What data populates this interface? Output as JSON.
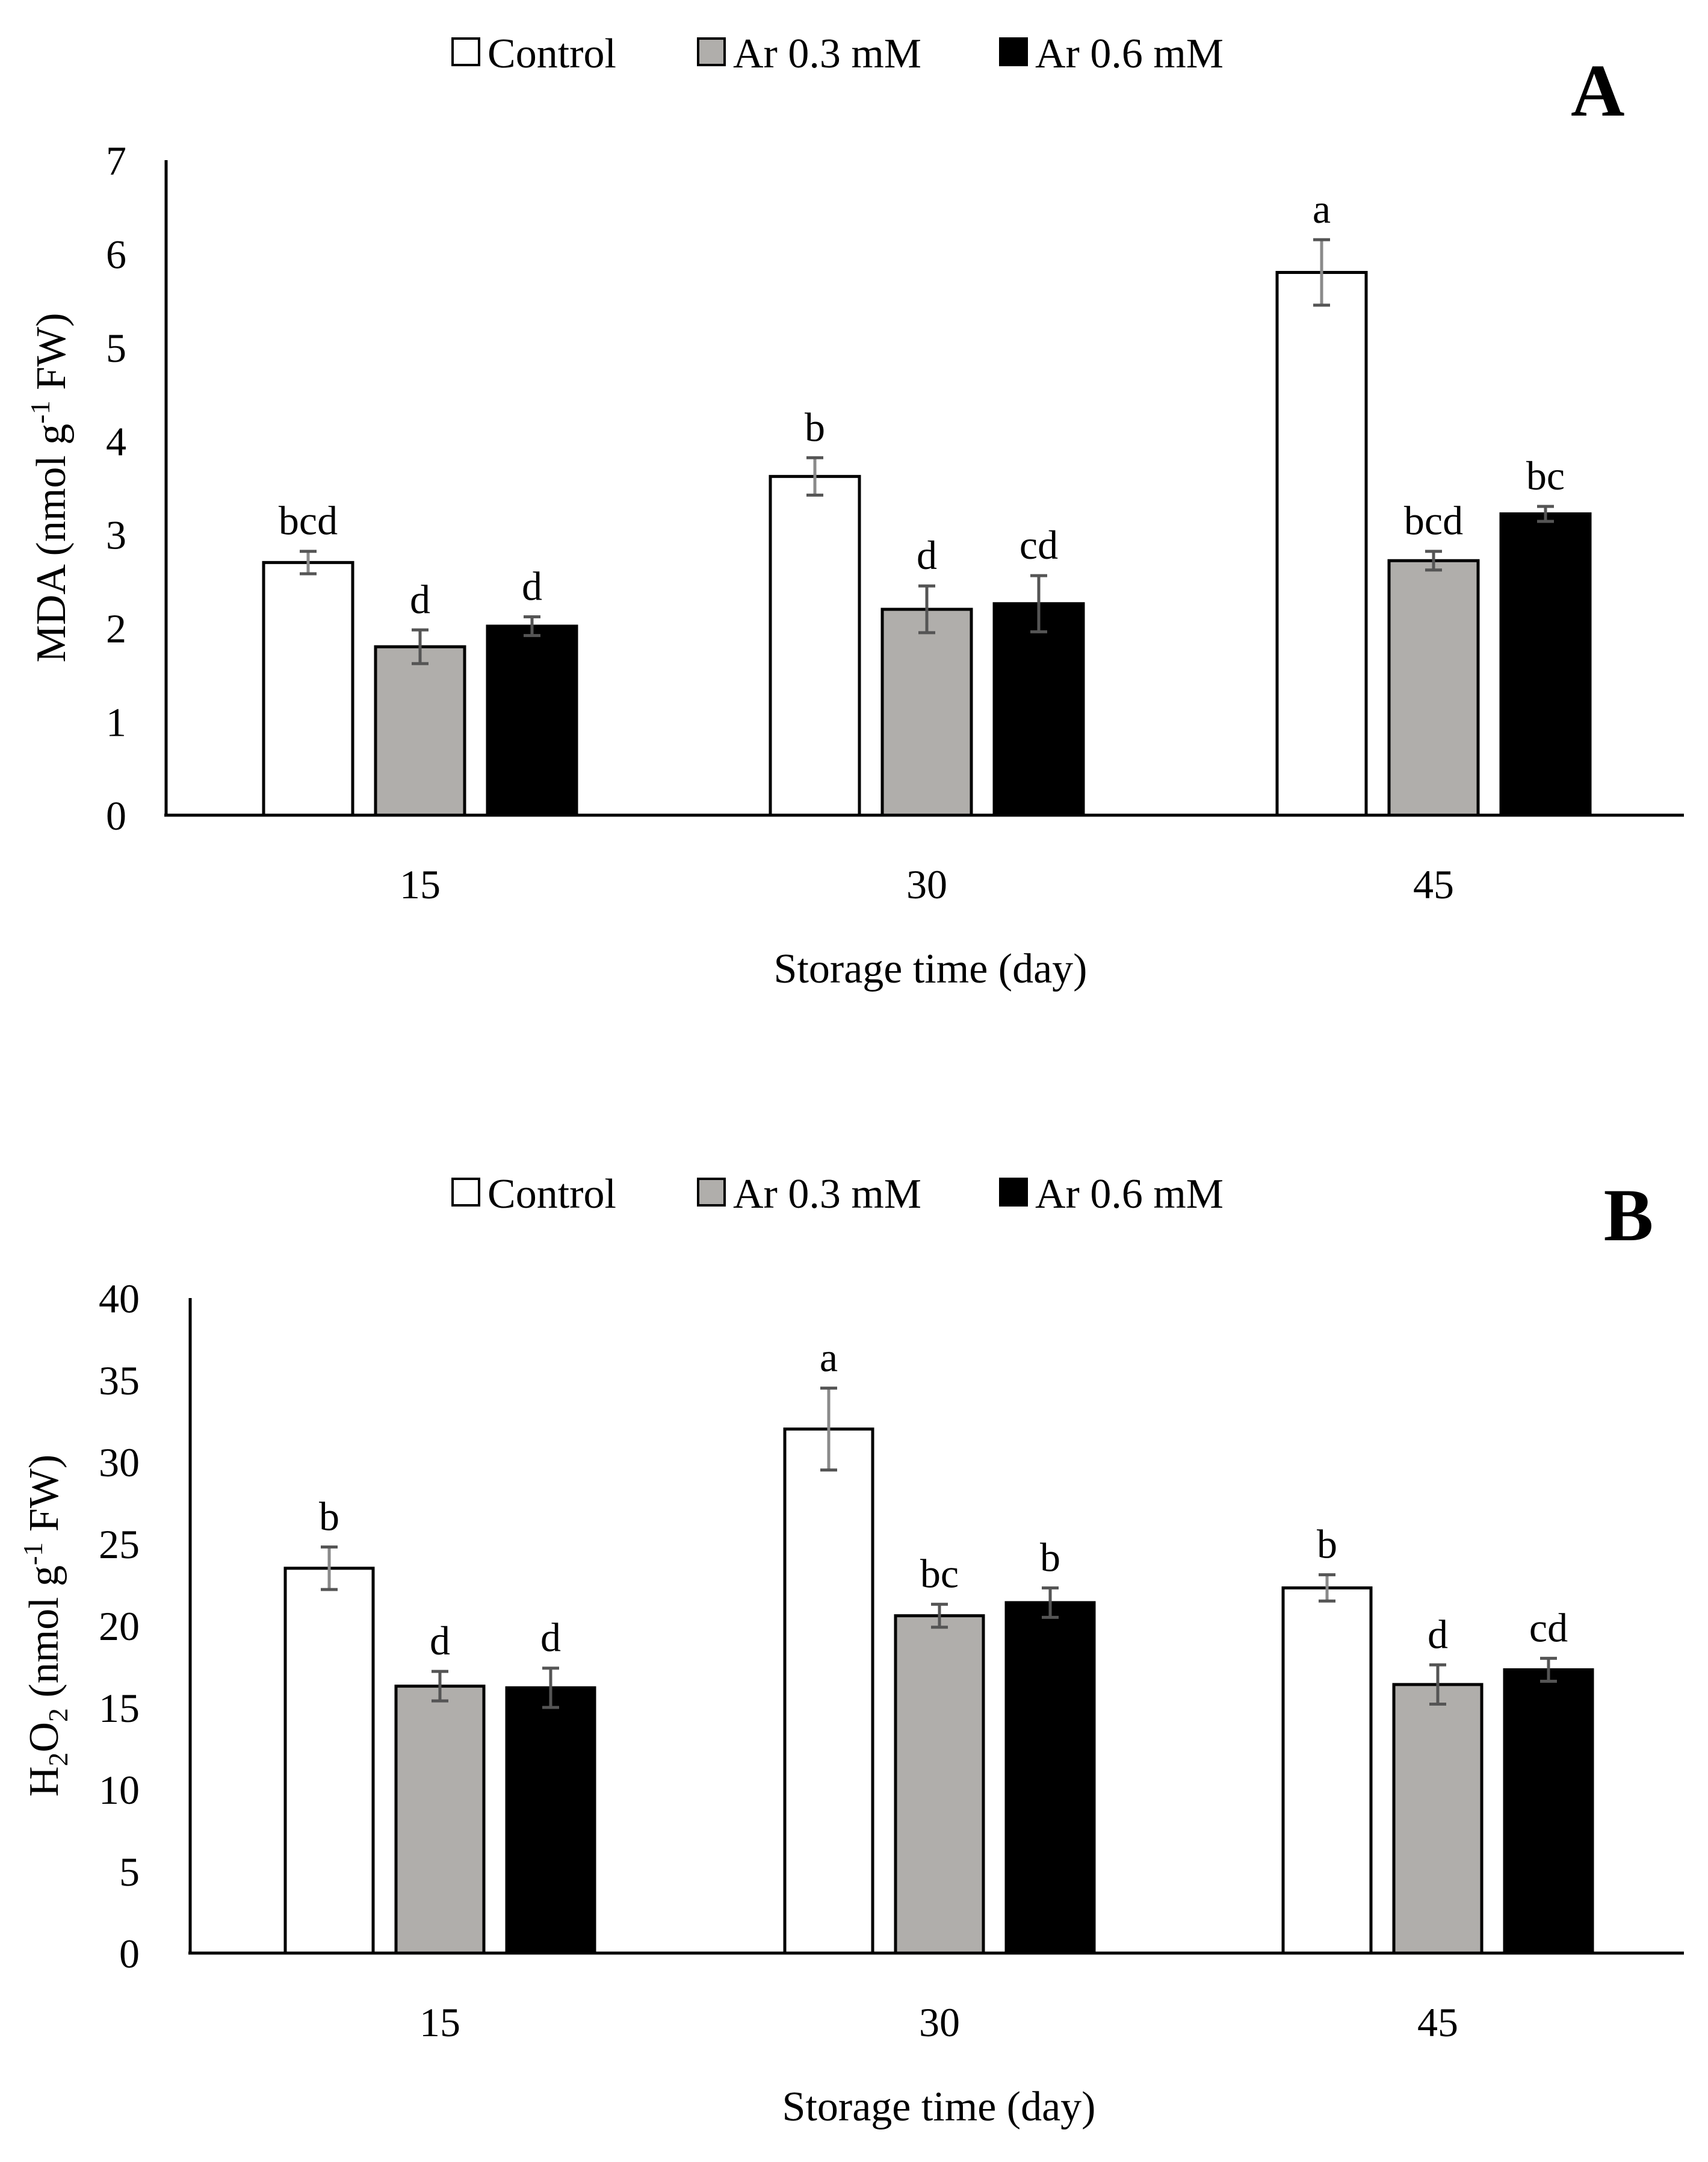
{
  "figure": {
    "series": [
      {
        "name": "Control",
        "color": "#ffffff"
      },
      {
        "name": "Ar 0.3 mM",
        "color": "#b0aeab"
      },
      {
        "name": "Ar 0.6 mM",
        "color": "#000000"
      }
    ]
  },
  "chart_data": [
    {
      "type": "bar",
      "panel_label": "A",
      "ylabel": {
        "main": "MDA (nmol g",
        "sup": "-1",
        "tail": " FW)"
      },
      "xlabel": "Storage time (day)",
      "categories": [
        "15",
        "30",
        "45"
      ],
      "ylim": [
        0,
        7
      ],
      "yticks": [
        0,
        1,
        2,
        3,
        4,
        5,
        6,
        7
      ],
      "legend_position": "top",
      "grid": false,
      "series": [
        {
          "name": "Control",
          "values": [
            2.7,
            3.62,
            5.8
          ],
          "errors": [
            0.12,
            0.2,
            0.35
          ],
          "labels": [
            "bcd",
            "b",
            "a"
          ]
        },
        {
          "name": "Ar 0.3 mM",
          "values": [
            1.8,
            2.2,
            2.72
          ],
          "errors": [
            0.18,
            0.25,
            0.1
          ],
          "labels": [
            "d",
            "d",
            "bcd"
          ]
        },
        {
          "name": "Ar 0.6 mM",
          "values": [
            2.02,
            2.26,
            3.22
          ],
          "errors": [
            0.1,
            0.3,
            0.08
          ],
          "labels": [
            "d",
            "cd",
            "bc"
          ]
        }
      ]
    },
    {
      "type": "bar",
      "panel_label": "B",
      "ylabel": {
        "pre": "H",
        "sub1": "2",
        "mid": "O",
        "sub2": "2",
        "main": " (nmol g",
        "sup": "-1",
        "tail": " FW)"
      },
      "xlabel": "Storage time (day)",
      "categories": [
        "15",
        "30",
        "45"
      ],
      "ylim": [
        0,
        40
      ],
      "yticks": [
        0,
        5,
        10,
        15,
        20,
        25,
        30,
        35,
        40
      ],
      "legend_position": "top",
      "grid": false,
      "series": [
        {
          "name": "Control",
          "values": [
            23.5,
            32.0,
            22.3
          ],
          "errors": [
            1.3,
            2.5,
            0.8
          ],
          "labels": [
            "b",
            "a",
            "b"
          ]
        },
        {
          "name": "Ar 0.3 mM",
          "values": [
            16.3,
            20.6,
            16.4
          ],
          "errors": [
            0.9,
            0.7,
            1.2
          ],
          "labels": [
            "d",
            "bc",
            "d"
          ]
        },
        {
          "name": "Ar 0.6 mM",
          "values": [
            16.2,
            21.4,
            17.3
          ],
          "errors": [
            1.2,
            0.9,
            0.7
          ],
          "labels": [
            "d",
            "b",
            "cd"
          ]
        }
      ]
    }
  ]
}
